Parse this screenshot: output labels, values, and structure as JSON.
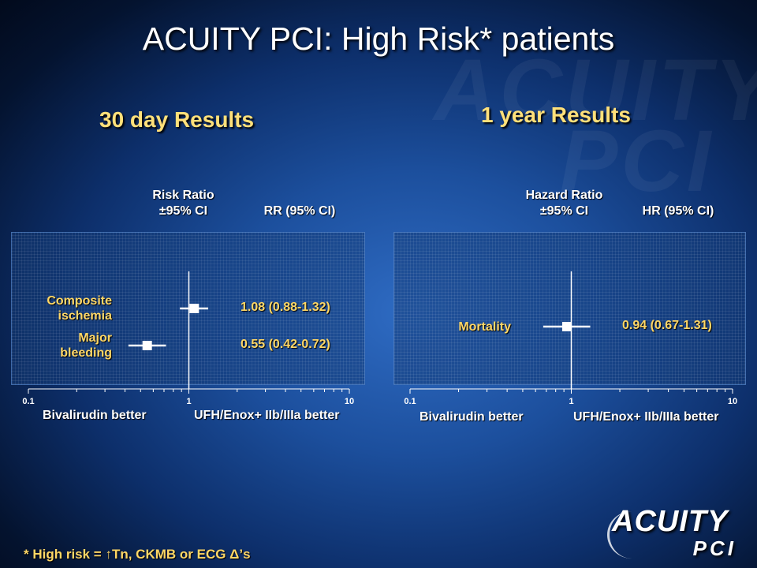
{
  "slide": {
    "title": "ACUITY PCI:  High Risk* patients",
    "footnote": "* High risk = ↑Tn, CKMB or ECG Δ’s",
    "logo_top": "ACUITY",
    "logo_bottom": "PCI",
    "watermark_top": "ACUITY",
    "watermark_bottom": "PCI"
  },
  "left": {
    "section_title": "30 day Results",
    "ratio_header": "Risk Ratio\n±95% CI",
    "value_header": "RR (95% CI)",
    "favor_left": "Bivalirudin better",
    "favor_right": "UFH/Enox+ IIb/IIIa better"
  },
  "right": {
    "section_title": "1 year Results",
    "ratio_header": "Hazard Ratio\n±95% CI",
    "value_header": "HR (95% CI)",
    "favor_left": "Bivalirudin better",
    "favor_right": "UFH/Enox+ IIb/IIIa better"
  },
  "chart_data": [
    {
      "type": "forest",
      "scale": "log",
      "xlim": [
        0.1,
        10
      ],
      "ticks": [
        "0.1",
        "1",
        "10"
      ],
      "reference_line": 1,
      "rows": [
        {
          "label": "Composite ischemia",
          "estimate": 1.08,
          "lower": 0.88,
          "upper": 1.32,
          "text": "1.08 (0.88-1.32)"
        },
        {
          "label": "Major bleeding",
          "estimate": 0.55,
          "lower": 0.42,
          "upper": 0.72,
          "text": "0.55 (0.42-0.72)"
        }
      ]
    },
    {
      "type": "forest",
      "scale": "log",
      "xlim": [
        0.1,
        10
      ],
      "ticks": [
        "0.1",
        "1",
        "10"
      ],
      "reference_line": 1,
      "rows": [
        {
          "label": "Mortality",
          "estimate": 0.94,
          "lower": 0.67,
          "upper": 1.31,
          "text": "0.94 (0.67-1.31)"
        }
      ]
    }
  ]
}
